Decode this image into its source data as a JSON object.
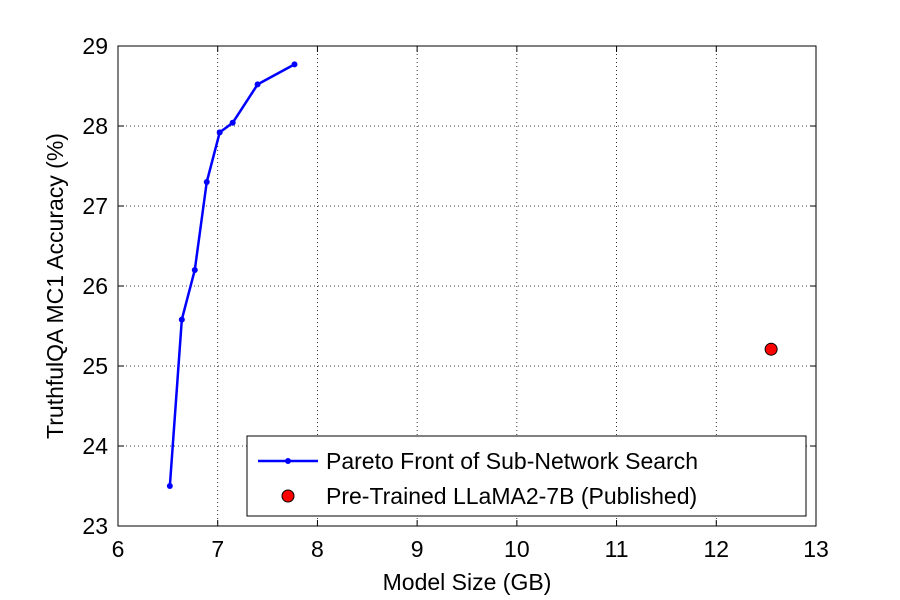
{
  "chart_data": {
    "type": "line",
    "title": "",
    "xlabel": "Model Size (GB)",
    "ylabel": "TruthfulQA MC1 Accuracy (%)",
    "xlim": [
      6,
      13
    ],
    "ylim": [
      23,
      29
    ],
    "xticks": [
      "6",
      "7",
      "8",
      "9",
      "10",
      "11",
      "12",
      "13"
    ],
    "yticks": [
      "23",
      "24",
      "25",
      "26",
      "27",
      "28",
      "29"
    ],
    "grid": true,
    "legend_position": "bottom-right",
    "series": [
      {
        "name": "Pareto Front of Sub-Network Search",
        "color": "#0000ff",
        "marker": "dot",
        "line": "solid",
        "x": [
          6.52,
          6.64,
          6.77,
          6.89,
          7.02,
          7.15,
          7.4,
          7.77
        ],
        "y": [
          23.5,
          25.58,
          26.2,
          27.3,
          27.92,
          28.04,
          28.52,
          28.77
        ]
      },
      {
        "name": "Pre-Trained LLaMA2-7B (Published)",
        "color": "#ff0000",
        "marker": "circle",
        "line": "none",
        "x": [
          12.55
        ],
        "y": [
          25.21
        ]
      }
    ]
  }
}
